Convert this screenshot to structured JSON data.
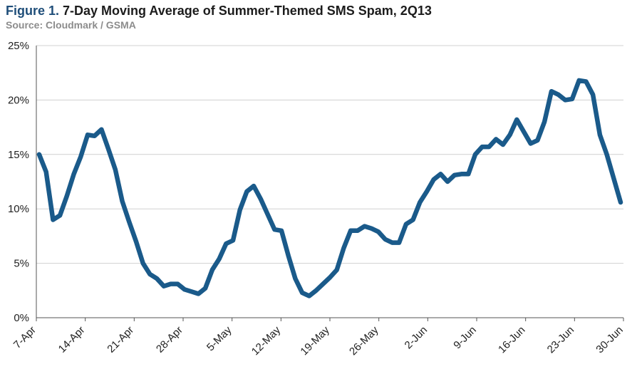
{
  "figure": {
    "label": "Figure 1.",
    "title": "7-Day Moving Average of Summer-Themed SMS Spam, 2Q13",
    "source": "Source: Cloudmark / GSMA"
  },
  "chart_data": {
    "type": "line",
    "title": "7-Day Moving Average of Summer-Themed SMS Spam, 2Q13",
    "subtitle": "Source: Cloudmark / GSMA",
    "xlabel": "",
    "ylabel": "",
    "ylim": [
      0,
      25
    ],
    "yticks": [
      0,
      5,
      10,
      15,
      20,
      25
    ],
    "ytick_labels": [
      "0%",
      "5%",
      "10%",
      "15%",
      "20%",
      "25%"
    ],
    "xtick_labels": [
      "7-Apr",
      "14-Apr",
      "21-Apr",
      "28-Apr",
      "5-May",
      "12-May",
      "19-May",
      "26-May",
      "2-Jun",
      "9-Jun",
      "16-Jun",
      "23-Jun",
      "30-Jun"
    ],
    "grid": "horizontal",
    "line_color": "#1a5a8a",
    "series": [
      {
        "values": [
          15.0,
          13.4,
          9.0,
          9.4,
          11.2,
          13.2,
          14.8,
          16.8,
          16.7,
          17.3,
          15.5,
          13.6,
          10.7,
          8.8,
          7.0,
          5.0,
          4.0,
          3.6,
          2.9,
          3.1,
          3.1,
          2.6,
          2.4,
          2.2,
          2.7,
          4.4,
          5.4,
          6.8,
          7.1,
          9.9,
          11.6,
          12.1,
          10.9,
          9.5,
          8.1,
          8.0,
          5.7,
          3.6,
          2.3,
          2.0,
          2.5,
          3.1,
          3.7,
          4.4,
          6.4,
          8.0,
          8.0,
          8.4,
          8.2,
          7.9,
          7.2,
          6.9,
          6.9,
          8.6,
          9.0,
          10.6,
          11.6,
          12.7,
          13.2,
          12.5,
          13.1,
          13.2,
          13.2,
          15.0,
          15.7,
          15.7,
          16.4,
          15.9,
          16.8,
          18.2,
          17.1,
          16.0,
          16.3,
          18.0,
          20.8,
          20.5,
          20.0,
          20.1,
          21.8,
          21.7,
          20.5,
          16.8,
          15.0,
          12.8,
          10.6
        ]
      }
    ]
  }
}
